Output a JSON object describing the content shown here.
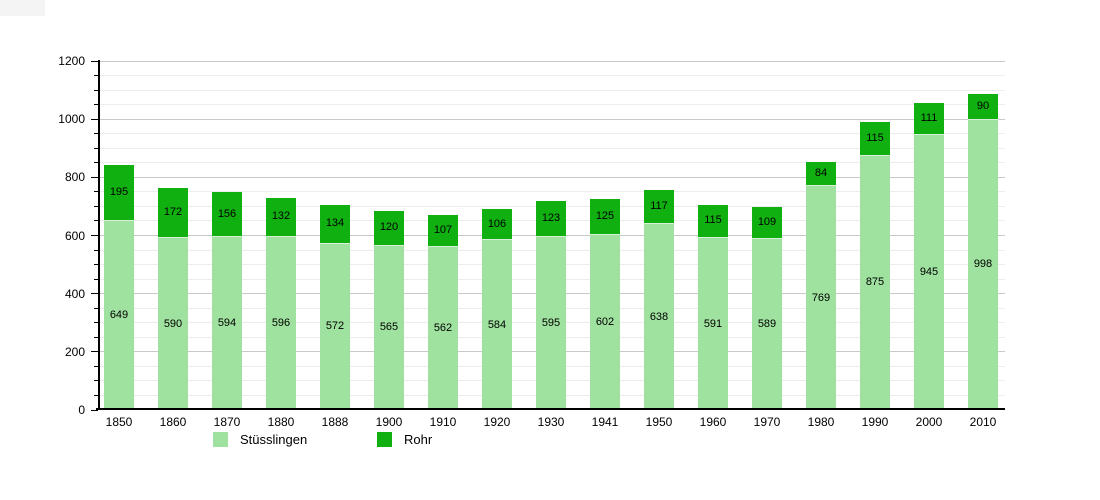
{
  "page": {
    "background": "#ffffff"
  },
  "chart_data": {
    "type": "bar",
    "stacked": true,
    "title": "",
    "xlabel": "",
    "ylabel": "",
    "categories": [
      "1850",
      "1860",
      "1870",
      "1880",
      "1888",
      "1900",
      "1910",
      "1920",
      "1930",
      "1941",
      "1950",
      "1960",
      "1970",
      "1980",
      "1990",
      "2000",
      "2010"
    ],
    "series": [
      {
        "name": "Stüsslingen",
        "color": "#9fe29f",
        "values": [
          649,
          590,
          594,
          596,
          572,
          565,
          562,
          584,
          595,
          602,
          638,
          591,
          589,
          769,
          875,
          945,
          998
        ]
      },
      {
        "name": "Rohr",
        "color": "#0fb00f",
        "values": [
          195,
          172,
          156,
          132,
          134,
          120,
          107,
          106,
          123,
          125,
          117,
          115,
          109,
          84,
          115,
          111,
          90
        ]
      }
    ],
    "totals": [
      844,
      762,
      750,
      728,
      706,
      685,
      669,
      690,
      718,
      727,
      755,
      706,
      698,
      853,
      990,
      1056,
      1088
    ],
    "ylim": [
      0,
      1200
    ],
    "y_major_step": 200,
    "y_minor_step": 50,
    "y_tick_labels": [
      "0",
      "200",
      "400",
      "600",
      "800",
      "1000",
      "1200"
    ],
    "grid": true,
    "value_labels": "inside-center",
    "legend_position": "bottom",
    "colors": {
      "axis": "#000000",
      "grid_major": "#c9c9c9",
      "grid_minor": "#ededed",
      "label_text": "#000000"
    }
  }
}
